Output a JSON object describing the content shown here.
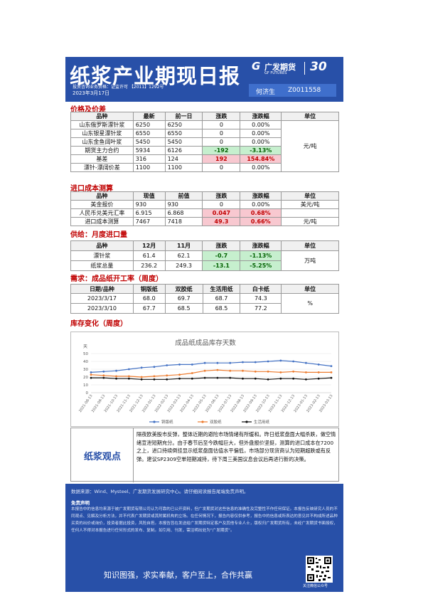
{
  "header": {
    "title": "纸浆产业期现日报",
    "permit": "投资咨询业务资格：证监许可 【2011】1292号",
    "date": "2023年3月17日",
    "logo_cn": "广发期货",
    "logo_en": "GF FUTURES",
    "anniversary": "30",
    "author_name": "何济生",
    "author_id": "Z0011558"
  },
  "sections": {
    "price": "价格及价差",
    "import_cost": "进口成本测算",
    "supply": "供给：月度进口量",
    "demand": "需求：成品纸开工率（周度）",
    "inventory": "库存变化（周度）"
  },
  "price_table": {
    "headers": [
      "品种",
      "最新",
      "前一日",
      "涨跌",
      "涨跌幅",
      "单位"
    ],
    "rows": [
      [
        "山东俄罗斯漂针浆",
        "6250",
        "6250",
        "0",
        "0.00%"
      ],
      [
        "山东银星漂针浆",
        "6550",
        "6550",
        "0",
        "0.00%"
      ],
      [
        "山东金鱼阔叶浆",
        "5450",
        "5450",
        "0",
        "0.00%"
      ],
      [
        "期货主力合约",
        "5934",
        "6126",
        "-192",
        "-3.13%"
      ],
      [
        "基差",
        "316",
        "124",
        "192",
        "154.84%"
      ],
      [
        "漂针-漂阔价差",
        "1100",
        "1100",
        "0",
        "0.00%"
      ]
    ],
    "unit": "元/吨"
  },
  "import_table": {
    "headers": [
      "品种",
      "现值",
      "前值",
      "涨跌",
      "涨跌幅",
      "单位"
    ],
    "rows": [
      [
        "美金报价",
        "930",
        "930",
        "0",
        "0.00%",
        "美元/吨"
      ],
      [
        "人民币兑美元汇率",
        "6.915",
        "6.868",
        "0.047",
        "0.68%",
        ""
      ],
      [
        "进口成本测算",
        "7467",
        "7418",
        "49.3",
        "0.66%",
        "元/吨"
      ]
    ]
  },
  "supply_table": {
    "headers": [
      "品种",
      "12月",
      "11月",
      "涨跌",
      "涨跌幅",
      "单位"
    ],
    "rows": [
      [
        "漂针浆",
        "61.4",
        "62.1",
        "-0.7",
        "-1.13%"
      ],
      [
        "纸浆总量",
        "236.2",
        "249.3",
        "-13.1",
        "-5.25%"
      ]
    ],
    "unit": "万吨"
  },
  "demand_table": {
    "headers": [
      "日期/品种",
      "铜版纸",
      "双胶纸",
      "生活用纸",
      "白卡纸",
      "单位"
    ],
    "rows": [
      [
        "2023/3/17",
        "68.0",
        "69.7",
        "68.7",
        "74.3"
      ],
      [
        "2023/3/10",
        "67.7",
        "68.5",
        "68.5",
        "77.2"
      ]
    ],
    "unit": "%"
  },
  "chart_data": {
    "type": "line",
    "title": "成品纸成品库存天数",
    "ylabel": "天",
    "ylim": [
      0,
      50
    ],
    "yticks": [
      0,
      10,
      20,
      30,
      40,
      50
    ],
    "x": [
      "2021-08-13",
      "2021-09-13",
      "2021-10-13",
      "2021-11-13",
      "2021-12-13",
      "2022-01-13",
      "2022-02-13",
      "2022-03-13",
      "2022-04-13",
      "2022-05-13",
      "2022-06-13",
      "2022-07-13",
      "2022-08-13",
      "2022-09-13",
      "2022-10-13",
      "2022-11-13",
      "2022-12-13",
      "2023-01-13",
      "2023-02-13",
      "2023-03-13"
    ],
    "series": [
      {
        "name": "铜版纸",
        "color": "#4472c4",
        "values": [
          26,
          27,
          28,
          30,
          32,
          33,
          35,
          36,
          36,
          38,
          38,
          38,
          39,
          39,
          40,
          41,
          40,
          38,
          36,
          34
        ]
      },
      {
        "name": "双胶纸",
        "color": "#ed7d31",
        "values": [
          23,
          22,
          21,
          21,
          20,
          21,
          22,
          23,
          25,
          28,
          29,
          28,
          28,
          27,
          27,
          26,
          27,
          26,
          26,
          26
        ]
      },
      {
        "name": "生活用纸",
        "color": "#111111",
        "values": [
          19,
          19,
          18,
          18,
          17,
          17,
          17,
          18,
          18,
          19,
          19,
          19,
          18,
          18,
          17,
          18,
          18,
          17,
          18,
          19
        ]
      }
    ]
  },
  "opinion": {
    "label": "纸浆观点",
    "text": "隔夜欧美股市反弹，整体近期的避险市场情绪有所缓和。昨日纸浆盘面大幅杀跌，做空情绪宣泄短期充分。由于春节后至今跌幅巨大，但外盘报价坚挺，测算的进口成本在7200之上，进口持续倒挂显示纸浆盘面估值水平偏低，市场部分现货商认为短期超跌或有反弹。建议SP2309空单短期减持，待下周三美国议息会议后再进行新的决策。"
  },
  "footer": {
    "source": "数据来源：Wind、Mysteel、广发期货发展研究中心。请仔细阅读报告尾端免责声明。",
    "disclaimer_title": "免责声明",
    "disclaimer": "本报告中的信息均来源于被广发期货有限公司认为可靠的已公开资料，但广发期货对这些信息的准确性及完整性不作任何保证。本报告反映研究人员的不同观点、见解及分析方法，并不代表广发期货或其附属机构的立场。在任何情况下，报告内容仅供参考，报告中的信息或所表达的意见并不构成所述品种买卖的出价或询价，投资者据此投资，风险自担。本报告旨在发送给广发期货特定客户及其他专业人士，版权归广发期货所有，未经广发期货书面授权，任何人不得对本报告进行任何形式的发布、复制。如引用、刊发，需注明出处为“广发期货”。",
    "slogan": "知识图强，求实奉献，客户至上，合作共赢",
    "qr_label": "关注微信公众号"
  }
}
